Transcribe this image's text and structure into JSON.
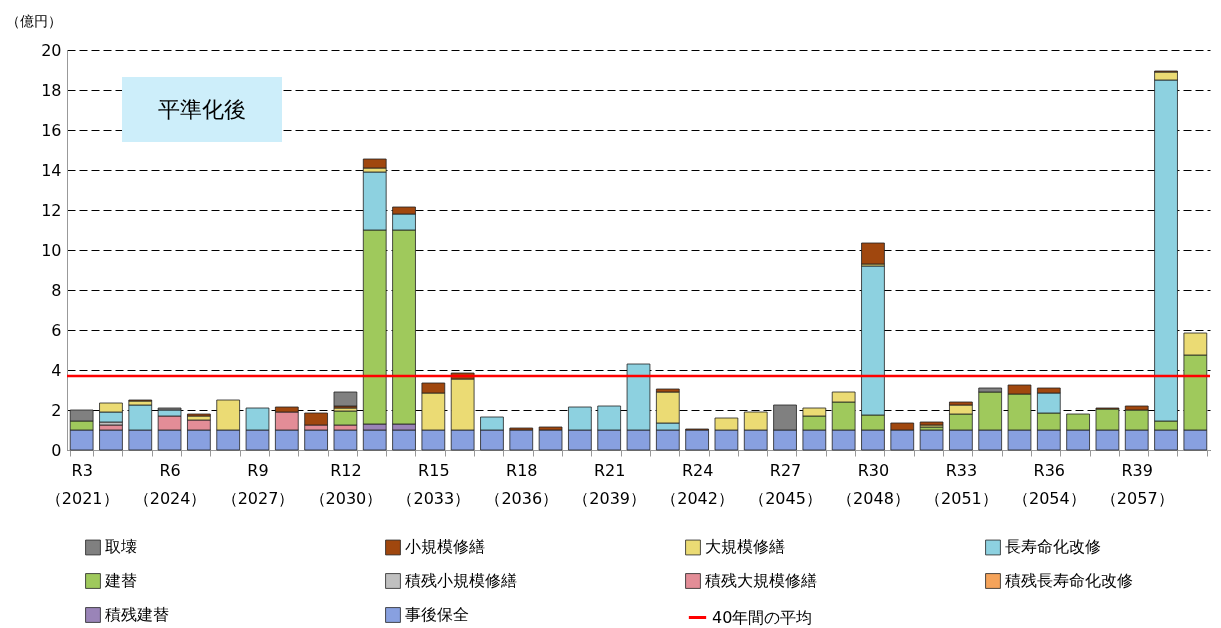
{
  "chart_data": {
    "type": "bar",
    "stacked": true,
    "ylabel": "（億円）",
    "annotations": [
      "平準化後"
    ],
    "categories": [
      "R3\n（2021）",
      null,
      null,
      "R6\n（2024）",
      null,
      null,
      "R9\n（2027）",
      null,
      null,
      "R12\n（2030）",
      null,
      null,
      "R15\n（2033）",
      null,
      null,
      "R18\n（2036）",
      null,
      null,
      "R21\n（2039）",
      null,
      null,
      "R24\n（2042）",
      null,
      null,
      "R27\n（2045）",
      null,
      null,
      "R30\n（2048）",
      null,
      null,
      "R33\n（2051）",
      null,
      null,
      "R36\n（2054）",
      null,
      null,
      "R39\n（2057）",
      null,
      null
    ],
    "ylim": [
      0,
      20
    ],
    "yticks": [
      0,
      2,
      4,
      6,
      8,
      10,
      12,
      14,
      16,
      18,
      20
    ],
    "grid": "y",
    "legend": "bottom",
    "series": [
      {
        "name": "事後保全",
        "color": "#88a0e0",
        "values": [
          1,
          1,
          1,
          1,
          1,
          1,
          1,
          1,
          1,
          1,
          1,
          1,
          1,
          1,
          1,
          1,
          1,
          1,
          1,
          1,
          1,
          1,
          1,
          1,
          1,
          1,
          1,
          1,
          1,
          1,
          1,
          1,
          1,
          1,
          1,
          1,
          1,
          1,
          1
        ]
      },
      {
        "name": "積残建替",
        "color": "#9a84b8",
        "values": [
          0,
          0,
          0,
          0,
          0,
          0,
          0,
          0,
          0,
          0,
          0.3,
          0.3,
          0,
          0,
          0,
          0,
          0,
          0,
          0,
          0,
          0,
          0,
          0,
          0,
          0,
          0,
          0,
          0,
          0,
          0,
          0,
          0,
          0,
          0,
          0,
          0,
          0,
          0,
          0
        ]
      },
      {
        "name": "積残長寿命化改修",
        "color": "#f5a35a",
        "values": [
          0,
          0,
          0,
          0,
          0,
          0,
          0,
          0,
          0,
          0,
          0,
          0,
          0,
          0,
          0,
          0,
          0,
          0,
          0,
          0,
          0,
          0,
          0,
          0,
          0,
          0,
          0,
          0,
          0,
          0,
          0,
          0,
          0,
          0,
          0,
          0,
          0,
          0,
          0
        ]
      },
      {
        "name": "積残大規模修繕",
        "color": "#e38d97",
        "values": [
          0,
          0.25,
          0,
          0.7,
          0.5,
          0,
          0,
          0.9,
          0.25,
          0.25,
          0,
          0,
          0,
          0,
          0,
          0,
          0,
          0,
          0,
          0,
          0,
          0,
          0,
          0,
          0,
          0,
          0,
          0,
          0,
          0,
          0,
          0,
          0,
          0,
          0,
          0,
          0,
          0,
          0
        ]
      },
      {
        "name": "積残小規模修繕",
        "color": "#c0c0c0",
        "values": [
          0,
          0.15,
          0,
          0,
          0,
          0,
          0,
          0,
          0,
          0,
          0,
          0,
          0,
          0,
          0,
          0,
          0,
          0,
          0,
          0,
          0,
          0,
          0,
          0,
          0,
          0,
          0,
          0,
          0,
          0,
          0,
          0,
          0,
          0,
          0,
          0,
          0,
          0,
          0
        ]
      },
      {
        "name": "建替",
        "color": "#9fc95c",
        "values": [
          0.45,
          0,
          0,
          0,
          0,
          0,
          0,
          0,
          0,
          0.7,
          9.7,
          9.7,
          0,
          0,
          0,
          0,
          0,
          0,
          0,
          0,
          0,
          0,
          0,
          0,
          0,
          0.7,
          1.4,
          0.75,
          0,
          0.15,
          0.8,
          1.9,
          1.8,
          0.85,
          0.8,
          1.05,
          1.0,
          0.45,
          3.75
        ]
      },
      {
        "name": "長寿命化改修",
        "color": "#8dd1e0",
        "values": [
          0,
          0.5,
          1.25,
          0.3,
          0,
          0,
          1.1,
          0,
          0,
          0,
          2.9,
          0.8,
          0,
          0,
          0.65,
          0,
          0,
          1.15,
          1.2,
          3.3,
          0.35,
          0,
          0,
          0,
          0,
          0,
          0,
          7.45,
          0,
          0,
          0,
          0,
          0,
          1.0,
          0,
          0,
          0,
          17.05,
          0
        ]
      },
      {
        "name": "大規模修繕",
        "color": "#ebdb74",
        "values": [
          0,
          0.45,
          0.2,
          0,
          0.2,
          1.5,
          0,
          0,
          0,
          0.15,
          0.2,
          0,
          1.85,
          2.55,
          0,
          0,
          0,
          0,
          0,
          0,
          1.55,
          0,
          0.6,
          0.9,
          0,
          0.4,
          0.5,
          0.1,
          0,
          0.1,
          0.45,
          0,
          0,
          0,
          0,
          0,
          0,
          0.4,
          1.1
        ]
      },
      {
        "name": "小規模修繕",
        "color": "#a0470e",
        "values": [
          0,
          0,
          0.05,
          0,
          0.1,
          0,
          0,
          0.25,
          0.6,
          0.1,
          0.45,
          0.35,
          0.5,
          0.3,
          0,
          0.1,
          0.15,
          0,
          0,
          0,
          0.15,
          0.05,
          0,
          0,
          0,
          0,
          0,
          1.05,
          0.35,
          0.15,
          0.15,
          0,
          0.45,
          0.25,
          0,
          0.05,
          0.2,
          0.05,
          0
        ]
      },
      {
        "name": "取壊",
        "color": "#808080",
        "values": [
          0.55,
          0,
          0,
          0.1,
          0,
          0,
          0,
          0,
          0,
          0.7,
          0,
          0,
          0,
          0,
          0,
          0,
          0,
          0,
          0,
          0,
          0,
          0,
          0,
          0,
          1.25,
          0,
          0,
          0,
          0,
          0,
          0,
          0.2,
          0,
          0,
          0,
          0,
          0,
          0,
          0
        ]
      }
    ],
    "ref_lines": [
      {
        "axis": "y",
        "value": 3.7,
        "label": "40年間の平均",
        "color": "#ff0000"
      }
    ]
  }
}
